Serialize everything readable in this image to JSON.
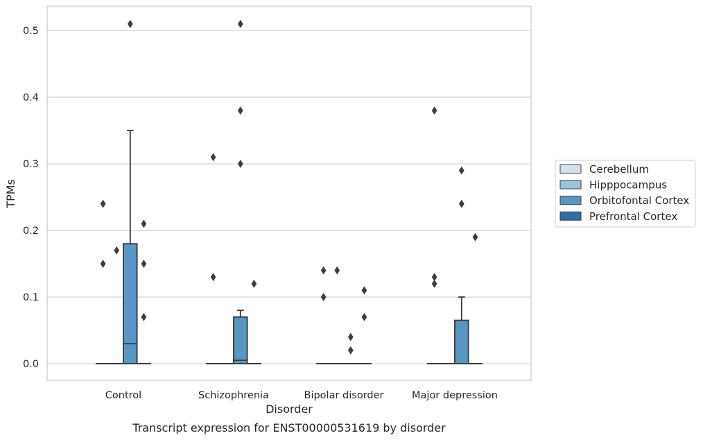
{
  "chart_data": {
    "type": "box",
    "caption": "Transcript expression for ENST00000531619 by disorder",
    "xlabel": "Disorder",
    "ylabel": "TPMs",
    "ylim": [
      -0.025,
      0.537
    ],
    "yticks": [
      0.0,
      0.1,
      0.2,
      0.3,
      0.4,
      0.5
    ],
    "ytick_labels": [
      "0.0",
      "0.1",
      "0.2",
      "0.3",
      "0.4",
      "0.5"
    ],
    "grid": "horizontal",
    "legend_placement": "center-right, outside plot",
    "categories": [
      "Control",
      "Schizophrenia",
      "Bipolar disorder",
      "Major depression"
    ],
    "series": [
      {
        "name": "Cerebellum",
        "color": "#d1e1f0",
        "boxes": [
          {
            "q1": 0,
            "median": 0,
            "q3": 0,
            "whisker_low": 0,
            "whisker_high": 0,
            "outliers": [
              0.24,
              0.15
            ]
          },
          {
            "q1": 0,
            "median": 0,
            "q3": 0,
            "whisker_low": 0,
            "whisker_high": 0,
            "outliers": [
              0.31,
              0.13
            ]
          },
          {
            "q1": 0,
            "median": 0,
            "q3": 0,
            "whisker_low": 0,
            "whisker_high": 0,
            "outliers": [
              0.14,
              0.1
            ]
          },
          {
            "q1": 0,
            "median": 0,
            "q3": 0,
            "whisker_low": 0,
            "whisker_high": 0,
            "outliers": [
              0.38,
              0.13,
              0.12
            ]
          }
        ]
      },
      {
        "name": "Hipppocampus",
        "color": "#9ac3dc",
        "boxes": [
          {
            "q1": 0,
            "median": 0,
            "q3": 0,
            "whisker_low": 0,
            "whisker_high": 0,
            "outliers": [
              0.17
            ]
          },
          {
            "q1": 0,
            "median": 0,
            "q3": 0,
            "whisker_low": 0,
            "whisker_high": 0,
            "outliers": []
          },
          {
            "q1": 0,
            "median": 0,
            "q3": 0,
            "whisker_low": 0,
            "whisker_high": 0,
            "outliers": [
              0.14
            ]
          },
          {
            "q1": 0,
            "median": 0,
            "q3": 0,
            "whisker_low": 0,
            "whisker_high": 0,
            "outliers": []
          }
        ]
      },
      {
        "name": "Orbitofontal Cortex",
        "color": "#5697c6",
        "boxes": [
          {
            "q1": 0,
            "median": 0.03,
            "q3": 0.18,
            "whisker_low": 0,
            "whisker_high": 0.35,
            "outliers": [
              0.51
            ]
          },
          {
            "q1": 0,
            "median": 0.005,
            "q3": 0.07,
            "whisker_low": 0,
            "whisker_high": 0.08,
            "outliers": [
              0.51,
              0.38,
              0.3
            ]
          },
          {
            "q1": 0,
            "median": 0,
            "q3": 0,
            "whisker_low": 0,
            "whisker_high": 0,
            "outliers": [
              0.04,
              0.02
            ]
          },
          {
            "q1": 0,
            "median": 0,
            "q3": 0.065,
            "whisker_low": 0,
            "whisker_high": 0.1,
            "outliers": [
              0.29,
              0.24
            ]
          }
        ]
      },
      {
        "name": "Prefrontal Cortex",
        "color": "#2e6ea7",
        "boxes": [
          {
            "q1": 0,
            "median": 0,
            "q3": 0,
            "whisker_low": 0,
            "whisker_high": 0,
            "outliers": [
              0.21,
              0.15,
              0.07
            ]
          },
          {
            "q1": 0,
            "median": 0,
            "q3": 0,
            "whisker_low": 0,
            "whisker_high": 0,
            "outliers": [
              0.12
            ]
          },
          {
            "q1": 0,
            "median": 0,
            "q3": 0,
            "whisker_low": 0,
            "whisker_high": 0,
            "outliers": [
              0.11,
              0.07
            ]
          },
          {
            "q1": 0,
            "median": 0,
            "q3": 0,
            "whisker_low": 0,
            "whisker_high": 0,
            "outliers": [
              0.19
            ]
          }
        ]
      }
    ]
  }
}
